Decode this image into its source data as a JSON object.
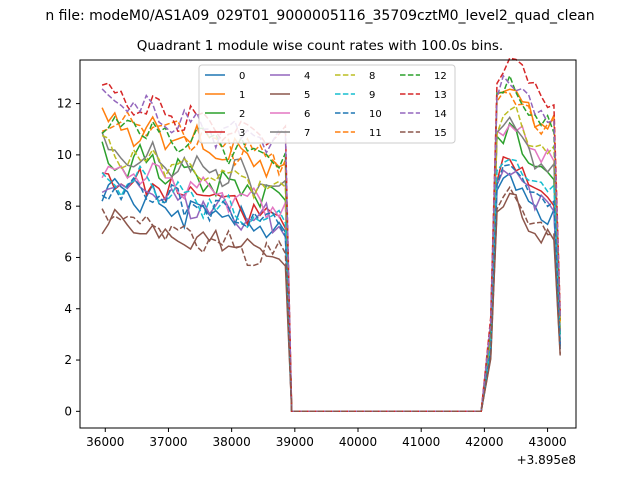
{
  "chart_data": {
    "type": "line",
    "suptitle": "n file: modeM0/AS1A09_029T01_9000005116_35709cztM0_level2_quad_clean",
    "title": "Quadrant 1 module wise count rates with 100.0s bins.",
    "xlabel": "",
    "ylabel": "",
    "x_offset_label": "+3.895e8",
    "xlim": [
      35600,
      43450
    ],
    "ylim": [
      -0.65,
      13.7
    ],
    "x_ticks": [
      36000,
      37000,
      38000,
      39000,
      40000,
      41000,
      42000,
      43000
    ],
    "x_tick_labels": [
      "36000",
      "37000",
      "38000",
      "39000",
      "40000",
      "41000",
      "42000",
      "43000"
    ],
    "y_ticks": [
      0,
      2,
      4,
      6,
      8,
      10,
      12
    ],
    "y_tick_labels": [
      "0",
      "2",
      "4",
      "6",
      "8",
      "10",
      "12"
    ],
    "segments": {
      "first_start": 35950,
      "first_end": 38850,
      "gap_end": 42000,
      "second_end": 43150,
      "step": 100
    },
    "legend": {
      "placement": "upper-center",
      "columns": 4
    },
    "series": [
      {
        "name": "0",
        "color": "#1f77b4",
        "dash": false,
        "base1": 7.0,
        "base2": 7.6
      },
      {
        "name": "1",
        "color": "#ff7f0e",
        "dash": false,
        "base1": 9.6,
        "base2": 11.2
      },
      {
        "name": "2",
        "color": "#2ca02c",
        "dash": false,
        "base1": 8.4,
        "base2": 9.4
      },
      {
        "name": "3",
        "color": "#d62728",
        "dash": false,
        "base1": 7.6,
        "base2": 8.3
      },
      {
        "name": "4",
        "color": "#9467bd",
        "dash": false,
        "base1": 7.3,
        "base2": 8.0
      },
      {
        "name": "5",
        "color": "#8c564b",
        "dash": false,
        "base1": 5.9,
        "base2": 6.8
      },
      {
        "name": "6",
        "color": "#e377c2",
        "dash": false,
        "base1": 8.0,
        "base2": 9.8
      },
      {
        "name": "7",
        "color": "#7f7f7f",
        "dash": false,
        "base1": 8.7,
        "base2": 9.6
      },
      {
        "name": "8",
        "color": "#bcbd22",
        "dash": true,
        "base1": 8.6,
        "base2": 10.2
      },
      {
        "name": "9",
        "color": "#17becf",
        "dash": true,
        "base1": 7.5,
        "base2": 8.6
      },
      {
        "name": "10",
        "color": "#1f77b4",
        "dash": true,
        "base1": 7.1,
        "base2": 7.9
      },
      {
        "name": "11",
        "color": "#ff7f0e",
        "dash": true,
        "base1": 9.9,
        "base2": 11.0
      },
      {
        "name": "12",
        "color": "#2ca02c",
        "dash": true,
        "base1": 9.8,
        "base2": 11.2
      },
      {
        "name": "13",
        "color": "#d62728",
        "dash": true,
        "base1": 10.6,
        "base2": 12.2
      },
      {
        "name": "14",
        "color": "#9467bd",
        "dash": true,
        "base1": 10.4,
        "base2": 11.5
      },
      {
        "name": "15",
        "color": "#8c564b",
        "dash": true,
        "base1": 6.0,
        "base2": 7.0
      }
    ]
  }
}
